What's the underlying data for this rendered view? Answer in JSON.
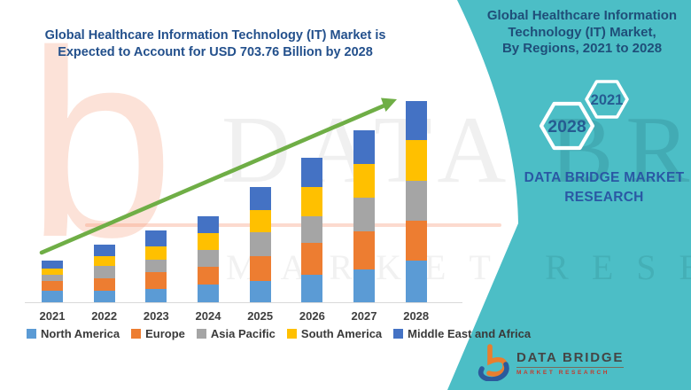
{
  "left_panel": {
    "title_line1": "Global Healthcare Information Technology (IT) Market is",
    "title_line2": "Expected to Account for USD 703.76 Billion by 2028"
  },
  "right_panel": {
    "title_line1": "Global Healthcare Information",
    "title_line2": "Technology (IT) Market,",
    "title_line3": "By Regions,  2021 to 2028",
    "hexagons": [
      {
        "label": "2028"
      },
      {
        "label": "2021"
      }
    ],
    "brand_line1": "DATA BRIDGE MARKET",
    "brand_line2": "RESEARCH",
    "logo": {
      "name": "DATA BRIDGE",
      "subtitle": "MARKET RESEARCH"
    }
  },
  "watermark": {
    "letter": "b",
    "row1": "DATA BRIDGE",
    "row2": "MARKET RESEARCH"
  },
  "colors": {
    "teal_panel": "#4CBEC6",
    "left_title": "#23508C",
    "right_title": "#1F4E79",
    "brand_blue": "#2A58A4",
    "arrow_green": "#6FAE46",
    "logo_orange": "#E87E2E",
    "logo_blue": "#2B5A9C",
    "logo_red": "#C23B2E",
    "axis_text": "#3F3F3F"
  },
  "chart_data": {
    "type": "bar",
    "stacked": true,
    "title": "Global Healthcare Information Technology (IT) Market is Expected to Account for USD 703.76 Billion by 2028",
    "unit": "USD billion",
    "categories": [
      "2021",
      "2022",
      "2023",
      "2024",
      "2025",
      "2026",
      "2027",
      "2028"
    ],
    "series": [
      {
        "name": "North America",
        "color": "#5B9BD5",
        "values": [
          40,
          39,
          48,
          62,
          76,
          97,
          116,
          147
        ]
      },
      {
        "name": "Europe",
        "color": "#ED7D31",
        "values": [
          33,
          45,
          57,
          63,
          86,
          110,
          132,
          137
        ]
      },
      {
        "name": "Asia Pacific",
        "color": "#A5A5A5",
        "values": [
          24,
          44,
          43,
          58,
          82,
          94,
          118,
          141
        ]
      },
      {
        "name": "South America",
        "color": "#FFC000",
        "values": [
          22,
          33,
          48,
          59,
          80,
          101,
          117,
          143
        ]
      },
      {
        "name": "Middle East and Africa",
        "color": "#4472C4",
        "values": [
          27,
          42,
          55,
          60,
          79,
          102,
          118,
          135.76
        ]
      }
    ],
    "totals": [
      146,
      203,
      251,
      302,
      403,
      504,
      601,
      703.76
    ],
    "ylim": [
      0,
      750
    ],
    "y_axis_visible": false,
    "grid": false,
    "legend_position": "bottom",
    "annotations": [
      "green upward trend arrow from 2021 bar to 2028 bar"
    ]
  }
}
